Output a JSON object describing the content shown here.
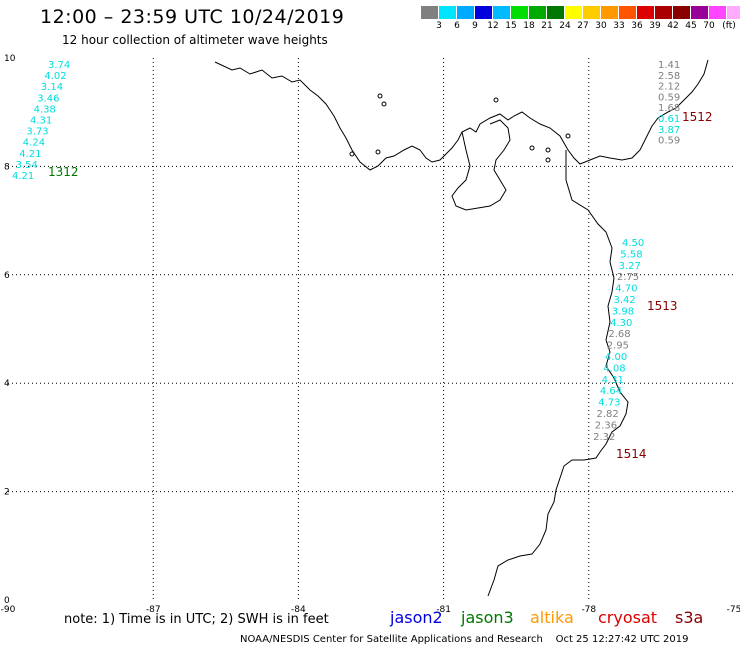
{
  "header": {
    "title": "12:00 – 23:59 UTC 10/24/2019",
    "subtitle": "12 hour collection of altimeter wave heights"
  },
  "scale": {
    "colors": [
      "#808080",
      "#00e5ff",
      "#00aaff",
      "#0000dd",
      "#00bbff",
      "#00dd00",
      "#00aa00",
      "#007700",
      "#ffff00",
      "#ffcc00",
      "#ff9900",
      "#ff5500",
      "#dd0000",
      "#aa0000",
      "#880000",
      "#990099",
      "#ff44ff",
      "#ffaaff",
      "#000000"
    ],
    "labels": [
      "3",
      "6",
      "9",
      "12",
      "15",
      "18",
      "21",
      "24",
      "27",
      "30",
      "33",
      "36",
      "39",
      "42",
      "45",
      "70",
      "(ft)"
    ]
  },
  "map": {
    "lon_ticks": [
      "-90",
      "-87",
      "-84",
      "-81",
      "-78",
      "-75"
    ],
    "lat_ticks": [
      "0",
      "2",
      "4",
      "6",
      "8",
      "10"
    ],
    "lon_range": [
      -90,
      -75
    ],
    "lat_range": [
      0,
      10
    ],
    "passes": [
      {
        "id": "1312",
        "color": "#007700"
      },
      {
        "id": "1512",
        "color": "#880000"
      },
      {
        "id": "1513",
        "color": "#880000"
      },
      {
        "id": "1514",
        "color": "#880000"
      }
    ],
    "readings": {
      "p1312": [
        "3.74",
        "4.02",
        "3.14",
        "3.46",
        "4.38",
        "4.31",
        "3.73",
        "4.24",
        "4.21",
        "3.54",
        "4.21"
      ],
      "p1512": [
        "1.41",
        "2.58",
        "2.12",
        "0.59",
        "1.68",
        "0.61",
        "3.87",
        "0.59"
      ],
      "p1513": [
        "4.50",
        "5.58",
        "3.27",
        "2.75",
        "4.70",
        "3.42",
        "3.98",
        "4.30",
        "2.68",
        "2.95",
        "4.00",
        "4.08",
        "4.31",
        "4.64",
        "4.73",
        "2.82",
        "2.36",
        "2.32"
      ]
    }
  },
  "footer": {
    "note": "note:  1) Time is in UTC;  2) SWH is in feet",
    "satellites": [
      {
        "name": "jason2",
        "color": "#0000dd"
      },
      {
        "name": "jason3",
        "color": "#007700"
      },
      {
        "name": "altika",
        "color": "#ff9900"
      },
      {
        "name": "cryosat",
        "color": "#dd0000"
      },
      {
        "name": "s3a",
        "color": "#880000"
      }
    ],
    "credit": "NOAA/NESDIS Center for Satellite Applications and Research",
    "timestamp": "Oct 25 12:27:42 UTC 2019"
  }
}
